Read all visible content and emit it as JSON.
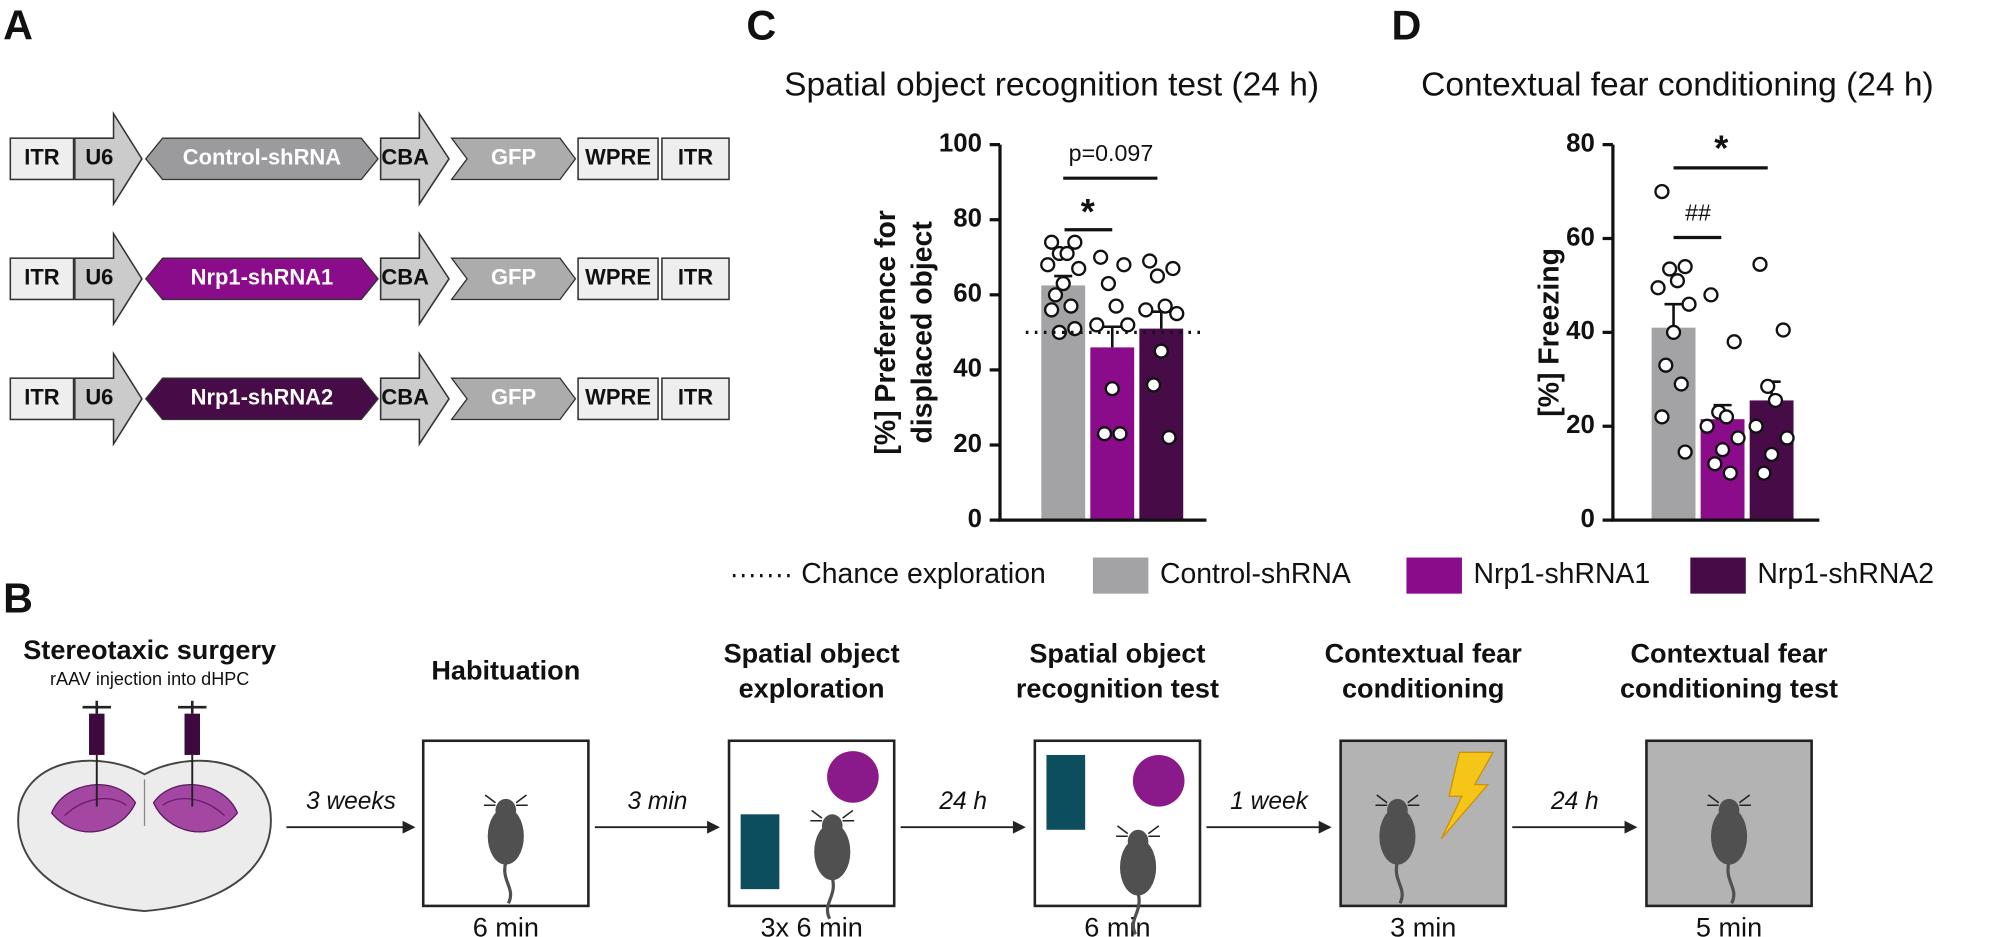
{
  "panel_labels": [
    "A",
    "B",
    "C",
    "D"
  ],
  "constructs": {
    "rows": [
      {
        "elements": [
          "ITR",
          "U6",
          "Control-shRNA",
          "CBA",
          "GFP",
          "WPRE",
          "ITR"
        ],
        "color": "#9b9b9d"
      },
      {
        "elements": [
          "ITR",
          "U6",
          "Nrp1-shRNA1",
          "CBA",
          "GFP",
          "WPRE",
          "ITR"
        ],
        "color": "#8a0c8a"
      },
      {
        "elements": [
          "ITR",
          "U6",
          "Nrp1-shRNA2",
          "CBA",
          "GFP",
          "WPRE",
          "ITR"
        ],
        "color": "#470b47"
      }
    ]
  },
  "chart_data": [
    {
      "type": "bar",
      "title": "Spatial object recognition test (24 h)",
      "ylabel": [
        "[%] Preference for",
        "displaced object"
      ],
      "ylim": [
        0,
        100
      ],
      "yticks": [
        0,
        20,
        40,
        60,
        80,
        100
      ],
      "hline": {
        "value": 50,
        "label": "Chance exploration"
      },
      "annotations": [
        "p=0.097",
        "*"
      ],
      "series": [
        {
          "name": "Control-shRNA",
          "color": "#a3a3a6",
          "values": [
            62.5
          ],
          "errors": [
            2.5
          ],
          "points": [
            74,
            74,
            71,
            71,
            68,
            67,
            63,
            60,
            57,
            56,
            51,
            50
          ]
        },
        {
          "name": "Nrp1-shRNA1",
          "color": "#8a0c8a",
          "values": [
            46
          ],
          "errors": [
            5.5
          ],
          "points": [
            70,
            68,
            63,
            57,
            52,
            52,
            35,
            23,
            23
          ]
        },
        {
          "name": "Nrp1-shRNA2",
          "color": "#470b47",
          "values": [
            51
          ],
          "errors": [
            4.5
          ],
          "points": [
            69,
            67,
            65,
            57,
            56,
            55,
            45,
            36,
            22
          ]
        }
      ]
    },
    {
      "type": "bar",
      "title": "Contextual fear conditioning (24 h)",
      "ylabel": [
        "[%] Freezing"
      ],
      "ylim": [
        0,
        80
      ],
      "yticks": [
        0,
        20,
        40,
        60,
        80
      ],
      "annotations": [
        "*",
        "##"
      ],
      "series": [
        {
          "color": "#a3a3a6",
          "values": [
            41
          ],
          "errors": [
            5
          ],
          "points": [
            70,
            54,
            53.5,
            51,
            49.5,
            46,
            40,
            33,
            29,
            22,
            14.5
          ]
        },
        {
          "color": "#8a0c8a",
          "values": [
            21.5
          ],
          "errors": [
            3
          ],
          "points": [
            48,
            38,
            23,
            22,
            20,
            17.5,
            15,
            12,
            10
          ]
        },
        {
          "color": "#470b47",
          "values": [
            25.5
          ],
          "errors": [
            4
          ],
          "points": [
            54.5,
            40.5,
            28.5,
            25.5,
            20,
            17.5,
            14,
            10
          ]
        }
      ]
    }
  ],
  "protocol": {
    "surgery": {
      "title": "Stereotaxic surgery",
      "subtitle": "rAAV injection into dHPC"
    },
    "steps": [
      {
        "title": [
          "Habituation"
        ],
        "duration": "6 min"
      },
      {
        "title": [
          "Spatial object",
          "exploration"
        ],
        "duration": "3x 6 min"
      },
      {
        "title": [
          "Spatial object",
          "recognition test"
        ],
        "duration": "6 min"
      },
      {
        "title": [
          "Contextual fear",
          "conditioning"
        ],
        "duration": "3 min"
      },
      {
        "title": [
          "Contextual fear",
          "conditioning test"
        ],
        "duration": "5 min"
      }
    ],
    "intervals": [
      "3 weeks",
      "3 min",
      "24 h",
      "1 week",
      "24 h"
    ]
  }
}
